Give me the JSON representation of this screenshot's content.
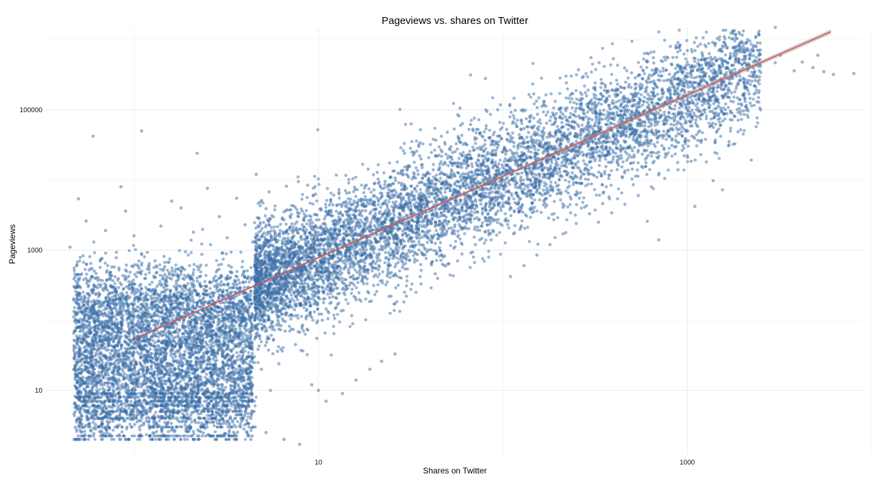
{
  "chart_data": {
    "type": "scatter",
    "title": "Pageviews vs. shares on Twitter",
    "xlabel": "Shares on Twitter",
    "ylabel": "Pageviews",
    "x_scale": "log10",
    "y_scale": "log10",
    "xlim": [
      0.33,
      9000
    ],
    "ylim": [
      1.2,
      1500000
    ],
    "x_ticks": [
      {
        "value": 10,
        "label": "10"
      },
      {
        "value": 1000,
        "label": "1000"
      }
    ],
    "y_ticks": [
      {
        "value": 10,
        "label": "10"
      },
      {
        "value": 1000,
        "label": "1000"
      },
      {
        "value": 100000,
        "label": "100000"
      }
    ],
    "x_minor_grid": [
      1,
      100,
      10000
    ],
    "y_minor_grid": [
      100,
      10000,
      1000000
    ],
    "grid": true,
    "legend": "none",
    "series": [
      {
        "name": "",
        "color": "#3a6ea8",
        "points": [
          [
            0.6,
            42000
          ],
          [
            1.1,
            50000
          ],
          [
            2.2,
            24000
          ],
          [
            4.6,
            12000
          ],
          [
            0.5,
            5400
          ],
          [
            0.85,
            8000
          ],
          [
            1.6,
            5000
          ],
          [
            2.5,
            7600
          ],
          [
            0.9,
            3600
          ],
          [
            0.55,
            2600
          ],
          [
            1.8,
            4000
          ],
          [
            2.9,
            3000
          ],
          [
            3.6,
            5500
          ],
          [
            1.4,
            2200
          ],
          [
            0.7,
            1900
          ],
          [
            2.1,
            1800
          ],
          [
            3.2,
            1500
          ],
          [
            1.0,
            1600
          ],
          [
            4.0,
            2300
          ],
          [
            5.2,
            3900
          ],
          [
            6.5,
            2700
          ],
          [
            7.7,
            3400
          ],
          [
            0.45,
            1100
          ],
          [
            1.9,
            950
          ],
          [
            2.6,
            1200
          ],
          [
            3.0,
            900
          ],
          [
            0.8,
            780
          ],
          [
            1.3,
            700
          ],
          [
            4.4,
            1300
          ],
          [
            5.8,
            1600
          ],
          [
            7.0,
            2100
          ],
          [
            8.5,
            1800
          ],
          [
            0.5,
            450
          ],
          [
            0.9,
            520
          ],
          [
            1.5,
            390
          ],
          [
            2.3,
            610
          ],
          [
            3.4,
            480
          ],
          [
            4.9,
            700
          ],
          [
            6.2,
            900
          ],
          [
            7.9,
            1100
          ],
          [
            9.5,
            1600
          ],
          [
            0.6,
            250
          ],
          [
            1.1,
            280
          ],
          [
            1.7,
            210
          ],
          [
            2.8,
            300
          ],
          [
            3.9,
            350
          ],
          [
            5.5,
            420
          ],
          [
            6.9,
            600
          ],
          [
            8.9,
            700
          ],
          [
            0.55,
            150
          ],
          [
            0.95,
            130
          ],
          [
            1.6,
            170
          ],
          [
            2.4,
            120
          ],
          [
            3.3,
            180
          ],
          [
            4.6,
            220
          ],
          [
            5.9,
            260
          ],
          [
            7.4,
            330
          ],
          [
            9.2,
            420
          ],
          [
            11,
            500
          ],
          [
            0.5,
            80
          ],
          [
            0.85,
            95
          ],
          [
            1.2,
            70
          ],
          [
            2.0,
            110
          ],
          [
            2.9,
            90
          ],
          [
            3.7,
            130
          ],
          [
            5.1,
            150
          ],
          [
            6.4,
            200
          ],
          [
            7.8,
            240
          ],
          [
            10,
            300
          ],
          [
            12,
            380
          ],
          [
            0.6,
            50
          ],
          [
            1.0,
            60
          ],
          [
            1.5,
            45
          ],
          [
            2.2,
            55
          ],
          [
            3.1,
            65
          ],
          [
            4.3,
            75
          ],
          [
            5.6,
            95
          ],
          [
            7.1,
            120
          ],
          [
            9.0,
            160
          ],
          [
            11.5,
            210
          ],
          [
            0.5,
            30
          ],
          [
            0.9,
            35
          ],
          [
            1.4,
            28
          ],
          [
            2.1,
            33
          ],
          [
            3.2,
            40
          ],
          [
            4.0,
            50
          ],
          [
            5.3,
            58
          ],
          [
            6.6,
            70
          ],
          [
            8.2,
            85
          ],
          [
            10.5,
            100
          ],
          [
            0.7,
            18
          ],
          [
            1.2,
            20
          ],
          [
            1.9,
            16
          ],
          [
            2.7,
            22
          ],
          [
            3.5,
            25
          ],
          [
            4.5,
            30
          ],
          [
            6.0,
            36
          ],
          [
            7.5,
            45
          ],
          [
            9.8,
            55
          ],
          [
            0.6,
            12
          ],
          [
            1.0,
            13
          ],
          [
            1.6,
            11
          ],
          [
            2.3,
            14
          ],
          [
            3.0,
            12
          ],
          [
            3.8,
            15
          ],
          [
            4.9,
            20
          ],
          [
            6.1,
            24
          ],
          [
            0.55,
            9
          ],
          [
            1.1,
            9
          ],
          [
            1.8,
            8
          ],
          [
            2.5,
            8
          ],
          [
            3.3,
            9
          ],
          [
            4.2,
            7
          ],
          [
            5.5,
            10
          ],
          [
            0.5,
            6
          ],
          [
            1.0,
            6
          ],
          [
            1.5,
            5
          ],
          [
            2.2,
            5
          ],
          [
            3.0,
            5
          ],
          [
            3.8,
            4
          ],
          [
            0.6,
            3.5
          ],
          [
            1.2,
            3.5
          ],
          [
            1.9,
            3.5
          ],
          [
            2.6,
            3.5
          ],
          [
            3.4,
            3
          ],
          [
            4.1,
            2.5
          ],
          [
            0.5,
            2
          ],
          [
            0.9,
            2
          ],
          [
            1.5,
            2
          ],
          [
            2.1,
            2
          ],
          [
            2.8,
            2
          ],
          [
            3.6,
            2
          ],
          [
            4.3,
            2
          ],
          [
            5.2,
            2.5
          ],
          [
            6.5,
            2
          ],
          [
            7.9,
            1.7
          ],
          [
            9.2,
            12
          ],
          [
            10,
            10
          ],
          [
            11,
            7
          ],
          [
            13.5,
            9
          ],
          [
            16,
            14
          ],
          [
            19,
            20
          ],
          [
            22,
            26
          ],
          [
            26,
            33
          ],
          [
            12,
            600
          ],
          [
            14,
            900
          ],
          [
            16,
            1400
          ],
          [
            18,
            2000
          ],
          [
            21,
            2600
          ],
          [
            24,
            3500
          ],
          [
            28,
            4500
          ],
          [
            32,
            6000
          ],
          [
            13,
            2500
          ],
          [
            15,
            3900
          ],
          [
            17,
            5200
          ],
          [
            20,
            7200
          ],
          [
            23,
            9500
          ],
          [
            27,
            12500
          ],
          [
            31,
            16000
          ],
          [
            36,
            20000
          ],
          [
            15,
            900
          ],
          [
            18,
            1300
          ],
          [
            21,
            1900
          ],
          [
            25,
            2700
          ],
          [
            29,
            3600
          ],
          [
            34,
            4800
          ],
          [
            40,
            6500
          ],
          [
            47,
            8800
          ],
          [
            20,
            420
          ],
          [
            24,
            600
          ],
          [
            28,
            820
          ],
          [
            33,
            1100
          ],
          [
            39,
            1500
          ],
          [
            46,
            2000
          ],
          [
            54,
            2700
          ],
          [
            63,
            3600
          ],
          [
            30,
            220
          ],
          [
            36,
            330
          ],
          [
            43,
            460
          ],
          [
            51,
            640
          ],
          [
            60,
            880
          ],
          [
            71,
            1200
          ],
          [
            84,
            1650
          ],
          [
            99,
            2250
          ],
          [
            40,
            9000
          ],
          [
            48,
            12000
          ],
          [
            57,
            15500
          ],
          [
            67,
            20000
          ],
          [
            79,
            26000
          ],
          [
            93,
            33000
          ],
          [
            110,
            42000
          ],
          [
            130,
            54000
          ],
          [
            35,
            30000
          ],
          [
            42,
            38000
          ],
          [
            50,
            48000
          ],
          [
            59,
            60000
          ],
          [
            70,
            76000
          ],
          [
            82,
            95000
          ],
          [
            97,
            118000
          ],
          [
            115,
            146000
          ],
          [
            55,
            4000
          ],
          [
            65,
            5400
          ],
          [
            77,
            7200
          ],
          [
            91,
            9500
          ],
          [
            107,
            12500
          ],
          [
            126,
            16500
          ],
          [
            149,
            21500
          ],
          [
            176,
            28000
          ],
          [
            75,
            1400
          ],
          [
            88,
            1900
          ],
          [
            104,
            2600
          ],
          [
            122,
            3500
          ],
          [
            144,
            4700
          ],
          [
            170,
            6300
          ],
          [
            200,
            8400
          ],
          [
            236,
            11000
          ],
          [
            110,
            420
          ],
          [
            130,
            600
          ],
          [
            153,
            850
          ],
          [
            180,
            1200
          ],
          [
            212,
            1700
          ],
          [
            250,
            2400
          ],
          [
            295,
            3300
          ],
          [
            348,
            4600
          ],
          [
            140,
            30000
          ],
          [
            165,
            38000
          ],
          [
            195,
            48000
          ],
          [
            230,
            60000
          ],
          [
            271,
            75000
          ],
          [
            320,
            93000
          ],
          [
            377,
            115000
          ],
          [
            445,
            142000
          ],
          [
            180,
            70000
          ],
          [
            212,
            86000
          ],
          [
            250,
            105000
          ],
          [
            295,
            128000
          ],
          [
            348,
            156000
          ],
          [
            410,
            190000
          ],
          [
            484,
            230000
          ],
          [
            571,
            280000
          ],
          [
            260,
            9000
          ],
          [
            307,
            12000
          ],
          [
            362,
            15500
          ],
          [
            427,
            20000
          ],
          [
            504,
            26000
          ],
          [
            594,
            33000
          ],
          [
            701,
            42000
          ],
          [
            827,
            54000
          ],
          [
            330,
            2500
          ],
          [
            389,
            3400
          ],
          [
            459,
            4500
          ],
          [
            542,
            6000
          ],
          [
            639,
            8000
          ],
          [
            754,
            10500
          ],
          [
            890,
            14000
          ],
          [
            1050,
            18500
          ],
          [
            500,
            80000
          ],
          [
            590,
            98000
          ],
          [
            696,
            120000
          ],
          [
            821,
            146000
          ],
          [
            969,
            178000
          ],
          [
            1143,
            216000
          ],
          [
            1349,
            262000
          ],
          [
            1592,
            318000
          ],
          [
            700,
            25000
          ],
          [
            826,
            31000
          ],
          [
            975,
            39000
          ],
          [
            1150,
            48000
          ],
          [
            1357,
            60000
          ],
          [
            1601,
            74000
          ],
          [
            1889,
            92000
          ],
          [
            2229,
            114000
          ],
          [
            820,
            450000
          ],
          [
            1000,
            700000
          ],
          [
            1240,
            520000
          ],
          [
            1500,
            400000
          ],
          [
            2000,
            900000
          ],
          [
            2500,
            340000
          ],
          [
            3000,
            470000
          ],
          [
            3800,
            360000
          ],
          [
            4200,
            480000
          ],
          [
            4800,
            400000
          ],
          [
            5100,
            600000
          ],
          [
            5500,
            350000
          ],
          [
            6200,
            320000
          ],
          [
            8000,
            330000
          ],
          [
            700,
            1400
          ],
          [
            1100,
            4200
          ],
          [
            2500,
            100000
          ],
          [
            3200,
            600000
          ],
          [
            1800,
            1350000
          ],
          [
            3000,
            1500000
          ],
          [
            2200,
            230000
          ],
          [
            900,
            280000
          ],
          [
            600,
            500000
          ],
          [
            1200,
            380000
          ]
        ]
      }
    ],
    "fit_line": {
      "x": [
        1,
        6000
      ],
      "y": [
        54,
        1300000
      ],
      "color": "#d9534f"
    }
  }
}
